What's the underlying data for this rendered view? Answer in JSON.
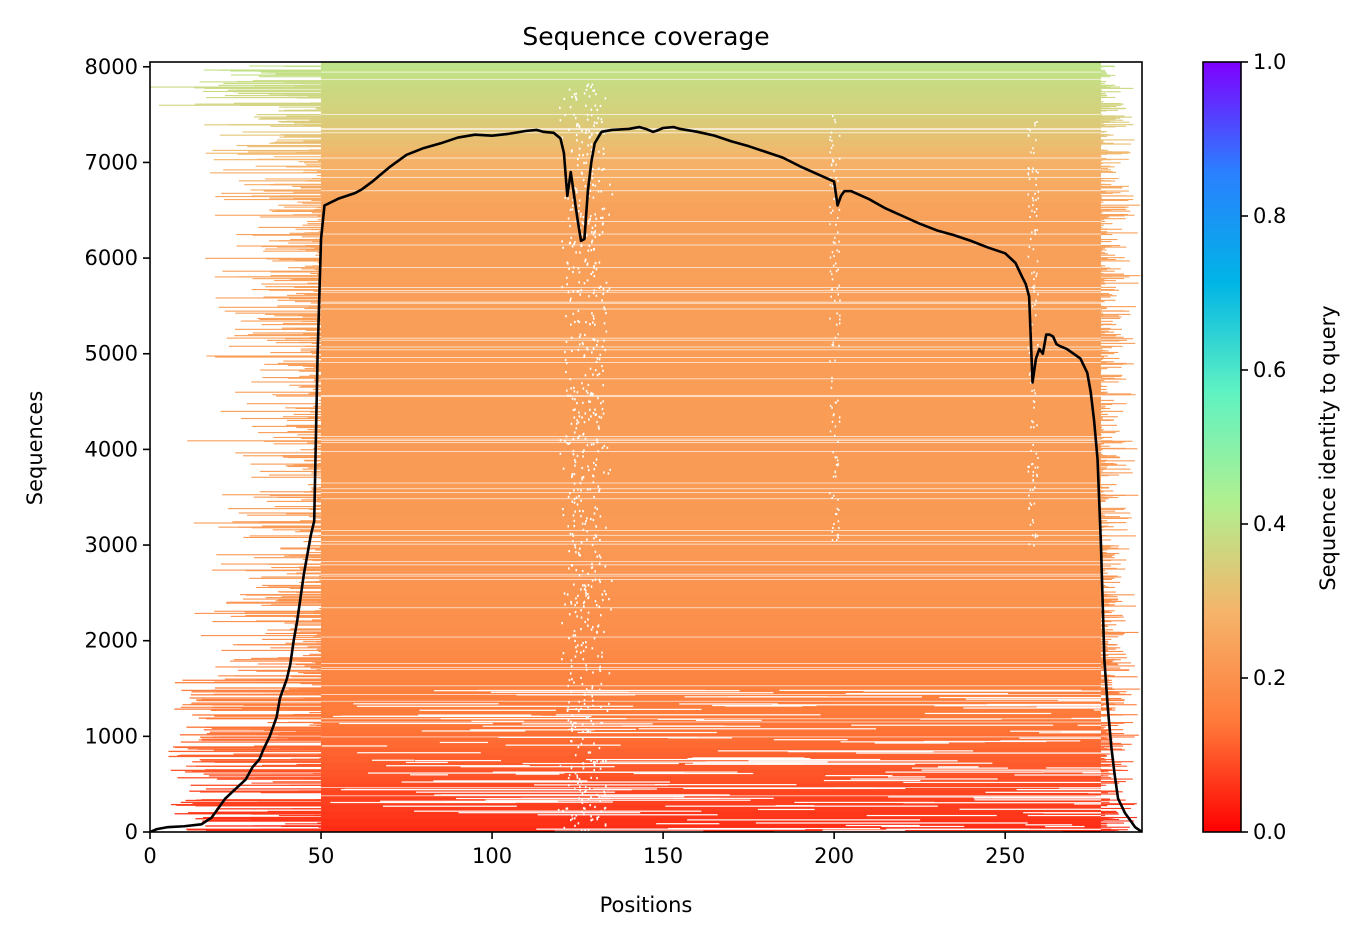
{
  "chart_data": {
    "type": "heatmap",
    "title": "Sequence coverage",
    "xlabel": "Positions",
    "ylabel": "Sequences",
    "xlim": [
      0,
      290
    ],
    "ylim": [
      0,
      8050
    ],
    "xticks": [
      0,
      50,
      100,
      150,
      200,
      250
    ],
    "yticks": [
      0,
      1000,
      2000,
      3000,
      4000,
      5000,
      6000,
      7000,
      8000
    ],
    "colorbar": {
      "label": "Sequence identity to query",
      "range": [
        0.0,
        1.0
      ],
      "ticks": [
        "0.0",
        "0.2",
        "0.4",
        "0.6",
        "0.8",
        "1.0"
      ],
      "colormap": "rainbow_r",
      "colors": [
        "#ff0000",
        "#ff7a3a",
        "#f5b46a",
        "#b0f090",
        "#5ff2c2",
        "#00b4e6",
        "#2a80ff",
        "#7f00ff"
      ]
    },
    "coverage_region": {
      "core_start": 50,
      "core_end": 278,
      "sparse_column": 127
    },
    "identity_by_sequence": {
      "sequence": [
        0,
        500,
        1000,
        1500,
        2000,
        3000,
        5000,
        6500,
        7000,
        7500,
        8050
      ],
      "identity": [
        0.05,
        0.09,
        0.13,
        0.16,
        0.19,
        0.22,
        0.23,
        0.24,
        0.28,
        0.35,
        0.4
      ]
    },
    "series": [
      {
        "x": [
          0,
          2,
          5,
          10,
          15,
          18,
          20,
          22,
          25,
          28,
          30,
          32,
          33,
          35,
          37,
          38,
          40,
          41,
          42,
          43,
          44,
          45,
          46,
          47,
          48,
          49,
          50,
          51,
          55,
          60,
          62,
          65,
          70,
          75,
          80,
          85,
          90,
          95,
          100,
          105,
          110,
          113,
          115,
          118,
          120,
          121,
          122,
          123,
          124,
          125,
          126,
          127,
          128,
          129,
          130,
          132,
          135,
          140,
          143,
          145,
          147,
          148,
          150,
          153,
          155,
          160,
          165,
          170,
          175,
          180,
          185,
          190,
          195,
          200,
          201,
          202,
          203,
          205,
          210,
          215,
          220,
          225,
          230,
          235,
          240,
          245,
          250,
          253,
          255,
          256,
          257,
          258,
          259,
          260,
          261,
          262,
          263,
          264,
          265,
          266,
          268,
          270,
          272,
          274,
          275,
          276,
          277,
          278,
          279,
          280,
          281,
          282,
          283,
          285,
          287,
          288,
          290
        ],
        "y": [
          0,
          30,
          50,
          60,
          80,
          150,
          250,
          350,
          450,
          550,
          680,
          760,
          850,
          1000,
          1200,
          1400,
          1600,
          1750,
          2000,
          2200,
          2450,
          2700,
          2900,
          3100,
          3250,
          5000,
          6200,
          6550,
          6620,
          6680,
          6720,
          6800,
          6950,
          7080,
          7150,
          7200,
          7260,
          7290,
          7280,
          7300,
          7330,
          7340,
          7320,
          7310,
          7250,
          7100,
          6650,
          6900,
          6650,
          6400,
          6180,
          6200,
          6700,
          7000,
          7200,
          7320,
          7340,
          7350,
          7370,
          7350,
          7320,
          7330,
          7360,
          7370,
          7350,
          7320,
          7280,
          7220,
          7170,
          7110,
          7050,
          6960,
          6880,
          6800,
          6550,
          6650,
          6700,
          6700,
          6620,
          6520,
          6440,
          6360,
          6290,
          6240,
          6180,
          6110,
          6050,
          5950,
          5800,
          5730,
          5600,
          4700,
          4950,
          5050,
          5000,
          5200,
          5200,
          5180,
          5100,
          5080,
          5050,
          5000,
          4950,
          4800,
          4600,
          4300,
          3900,
          3000,
          1800,
          1300,
          900,
          600,
          350,
          200,
          100,
          50,
          0
        ]
      }
    ]
  }
}
